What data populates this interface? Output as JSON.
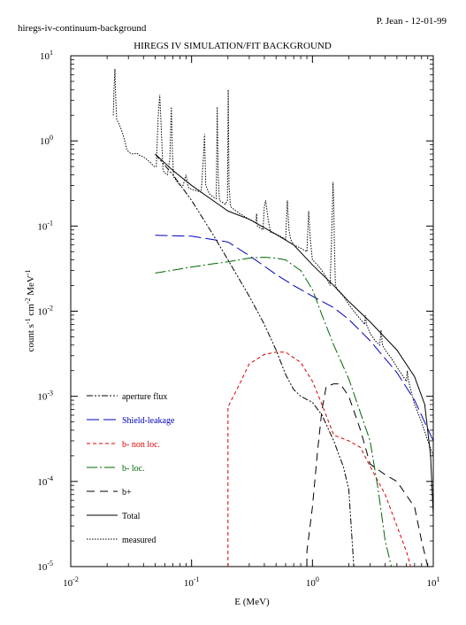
{
  "header": {
    "file_label": "hiregs-iv-continuum-background",
    "author_date": "P. Jean - 12-01-99"
  },
  "chart_data": {
    "type": "line",
    "title": "HIREGS IV SIMULATION/FIT BACKGROUND",
    "xlabel": "E (MeV)",
    "ylabel": {
      "base": "count s",
      "e1": "-1",
      "mid": " cm",
      "e2": "-2",
      "end": " MeV",
      "e3": "-1"
    },
    "x_scale": "log",
    "y_scale": "log",
    "xlim": [
      0.01,
      10
    ],
    "ylim": [
      1e-05,
      10
    ],
    "x_ticks": [
      {
        "value": 0.01,
        "base": "10",
        "exp": "-2"
      },
      {
        "value": 0.1,
        "base": "10",
        "exp": "-1"
      },
      {
        "value": 1,
        "base": "10",
        "exp": "0"
      },
      {
        "value": 10,
        "base": "10",
        "exp": "1"
      }
    ],
    "y_ticks": [
      {
        "value": 10,
        "base": "10",
        "exp": "1"
      },
      {
        "value": 1,
        "base": "10",
        "exp": "0"
      },
      {
        "value": 0.1,
        "base": "10",
        "exp": "-1"
      },
      {
        "value": 0.01,
        "base": "10",
        "exp": "-2"
      },
      {
        "value": 0.001,
        "base": "10",
        "exp": "-3"
      },
      {
        "value": 0.0001,
        "base": "10",
        "exp": "-4"
      },
      {
        "value": 1e-05,
        "base": "10",
        "exp": "-5"
      }
    ],
    "legend_position": "bottom-left",
    "series": [
      {
        "name": "aperture flux",
        "color": "#000000",
        "dash": "7 2 2 2 2 2",
        "x": [
          0.05,
          0.07,
          0.1,
          0.15,
          0.2,
          0.3,
          0.4,
          0.5,
          0.6,
          0.7,
          0.8,
          1.0,
          1.2,
          1.5,
          1.8,
          2.0,
          2.2
        ],
        "y": [
          0.7,
          0.4,
          0.2,
          0.08,
          0.04,
          0.015,
          0.007,
          0.0035,
          0.0018,
          0.0012,
          0.001,
          0.00085,
          0.0006,
          0.0003,
          0.00015,
          8e-05,
          1e-05
        ]
      },
      {
        "name": "Shield-leakage",
        "color": "#0000bb",
        "dash": "14 5",
        "x": [
          0.05,
          0.1,
          0.2,
          0.3,
          0.5,
          0.7,
          1.0,
          1.5,
          2.0,
          3.0,
          5.0,
          7.0,
          10.0
        ],
        "y": [
          0.078,
          0.076,
          0.065,
          0.045,
          0.027,
          0.02,
          0.015,
          0.011,
          0.008,
          0.0045,
          0.0019,
          0.0009,
          0.0003
        ]
      },
      {
        "name": "b- non loc.",
        "color": "#dd0000",
        "dash": "4 3",
        "x": [
          0.2,
          0.2,
          0.25,
          0.3,
          0.4,
          0.5,
          0.6,
          0.8,
          1.0,
          1.2,
          1.5,
          2.0,
          2.5,
          3.0,
          4.0,
          5.0,
          6.0,
          6.5
        ],
        "y": [
          1e-05,
          0.00075,
          0.0014,
          0.0024,
          0.0031,
          0.0033,
          0.0033,
          0.0025,
          0.0015,
          0.0008,
          0.00035,
          0.0003,
          0.00025,
          0.00015,
          7e-05,
          3e-05,
          1.5e-05,
          1e-05
        ]
      },
      {
        "name": "b- loc.",
        "color": "#006600",
        "dash": "12 3 2 3",
        "x": [
          0.05,
          0.1,
          0.15,
          0.2,
          0.3,
          0.4,
          0.5,
          0.6,
          0.8,
          1.0,
          1.2,
          1.5,
          2.0,
          3.0,
          3.5,
          4.0,
          4.5
        ],
        "y": [
          0.028,
          0.033,
          0.036,
          0.038,
          0.042,
          0.043,
          0.042,
          0.04,
          0.03,
          0.018,
          0.009,
          0.004,
          0.0016,
          0.0003,
          8e-05,
          2e-05,
          1e-05
        ]
      },
      {
        "name": "b+",
        "color": "#000000",
        "dash": "9 6",
        "x": [
          0.9,
          0.9,
          1.0,
          1.1,
          1.2,
          1.3,
          1.5,
          1.7,
          2.0,
          2.5,
          3.0,
          4.0,
          5.0,
          7.0,
          8.0,
          9.0,
          9.5
        ],
        "y": [
          1e-05,
          1.5e-05,
          5e-05,
          0.00022,
          0.0007,
          0.0013,
          0.0014,
          0.0014,
          0.001,
          0.0004,
          0.00016,
          0.00012,
          0.0001,
          5e-05,
          2e-05,
          1e-05,
          1e-05
        ]
      },
      {
        "name": "Total",
        "color": "#000000",
        "dash": "",
        "x": [
          0.05,
          0.07,
          0.1,
          0.15,
          0.2,
          0.3,
          0.5,
          0.7,
          1.0,
          1.5,
          2.0,
          3.0,
          5.0,
          7.0,
          8.5,
          9.5,
          10.0
        ],
        "y": [
          0.7,
          0.45,
          0.3,
          0.2,
          0.15,
          0.12,
          0.08,
          0.06,
          0.035,
          0.02,
          0.013,
          0.0075,
          0.0035,
          0.0017,
          0.0008,
          0.0002,
          4e-05
        ]
      },
      {
        "name": "measured",
        "color": "#000000",
        "dash": "1.5 1.5",
        "x": [
          0.0225,
          0.0228,
          0.0232,
          0.0236,
          0.024,
          0.025,
          0.026,
          0.027,
          0.028,
          0.029,
          0.03,
          0.031,
          0.033,
          0.035,
          0.037,
          0.04,
          0.043,
          0.046,
          0.049,
          0.051,
          0.053,
          0.0545,
          0.056,
          0.058,
          0.06,
          0.063,
          0.066,
          0.068,
          0.0695,
          0.071,
          0.073,
          0.076,
          0.08,
          0.085,
          0.09,
          0.093,
          0.095,
          0.1,
          0.11,
          0.12,
          0.125,
          0.128,
          0.131,
          0.14,
          0.15,
          0.16,
          0.163,
          0.166,
          0.17,
          0.18,
          0.19,
          0.198,
          0.201,
          0.204,
          0.21,
          0.22,
          0.25,
          0.3,
          0.34,
          0.345,
          0.35,
          0.37,
          0.39,
          0.4,
          0.41,
          0.43,
          0.45,
          0.5,
          0.55,
          0.6,
          0.62,
          0.64,
          0.66,
          0.7,
          0.8,
          0.9,
          0.93,
          0.96,
          1.0,
          1.1,
          1.2,
          1.3,
          1.4,
          1.45,
          1.48,
          1.5,
          1.52,
          1.55,
          1.6,
          1.8,
          2.0,
          2.2,
          2.5,
          2.7,
          2.75,
          2.8,
          3.0,
          3.3,
          3.6,
          3.7,
          3.8,
          4.0,
          4.5,
          5.0,
          5.5,
          6.0,
          6.1,
          6.2,
          6.5,
          7.0,
          8.0,
          9.0,
          10.0
        ],
        "y": [
          2.0,
          4.0,
          7.0,
          3.0,
          1.8,
          1.6,
          1.4,
          1.2,
          1.0,
          0.8,
          0.75,
          0.72,
          0.7,
          0.72,
          0.68,
          0.65,
          0.6,
          0.55,
          0.5,
          0.5,
          2.0,
          3.5,
          1.5,
          0.45,
          0.42,
          0.4,
          0.6,
          2.5,
          0.7,
          0.38,
          0.36,
          0.33,
          0.3,
          0.3,
          0.4,
          0.3,
          0.28,
          0.27,
          0.26,
          0.25,
          0.6,
          1.2,
          0.3,
          0.24,
          0.22,
          0.21,
          2.5,
          0.4,
          0.2,
          0.19,
          0.18,
          0.2,
          4.0,
          0.3,
          0.17,
          0.16,
          0.14,
          0.12,
          0.11,
          0.14,
          0.1,
          0.095,
          0.09,
          0.17,
          0.2,
          0.12,
          0.085,
          0.08,
          0.075,
          0.07,
          0.2,
          0.09,
          0.07,
          0.06,
          0.055,
          0.05,
          0.15,
          0.07,
          0.04,
          0.035,
          0.03,
          0.025,
          0.02,
          0.1,
          0.33,
          0.2,
          0.06,
          0.02,
          0.018,
          0.015,
          0.012,
          0.01,
          0.008,
          0.007,
          0.009,
          0.007,
          0.0055,
          0.0045,
          0.004,
          0.006,
          0.004,
          0.0035,
          0.0028,
          0.0022,
          0.0018,
          0.0015,
          0.002,
          0.0016,
          0.0012,
          0.0008,
          0.0005,
          0.0003,
          0.0002
        ]
      }
    ]
  }
}
